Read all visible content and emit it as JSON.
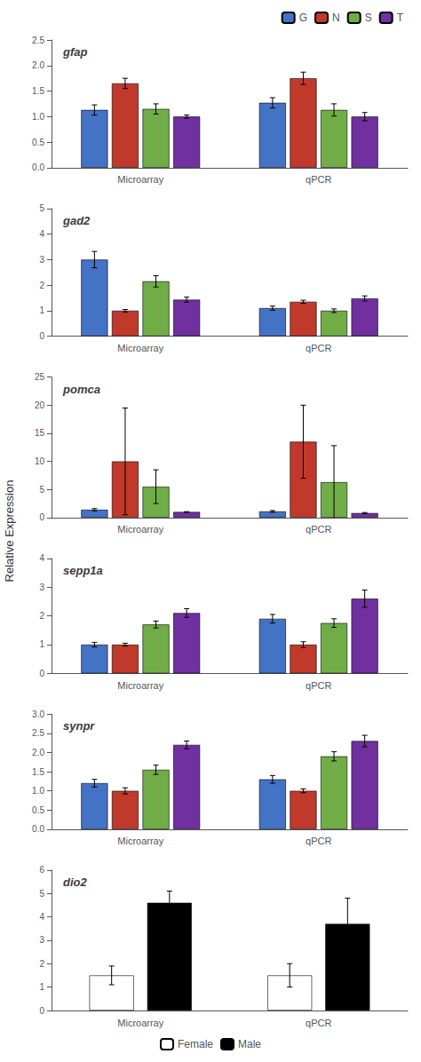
{
  "chart_data": [
    {
      "type": "bar",
      "title": "gfap",
      "ylabel": "Relative Expression",
      "categories": [
        "Microarray",
        "qPCR"
      ],
      "series": [
        {
          "name": "G",
          "color": "#4472C4",
          "values": [
            1.13,
            1.27
          ],
          "errors": [
            0.1,
            0.1
          ]
        },
        {
          "name": "N",
          "color": "#C0392B",
          "values": [
            1.65,
            1.75
          ],
          "errors": [
            0.1,
            0.12
          ]
        },
        {
          "name": "S",
          "color": "#70AD47",
          "values": [
            1.15,
            1.13
          ],
          "errors": [
            0.1,
            0.12
          ]
        },
        {
          "name": "T",
          "color": "#7030A0",
          "values": [
            1.0,
            1.0
          ],
          "errors": [
            0.03,
            0.08
          ]
        }
      ],
      "ylim": [
        0,
        2.5
      ],
      "yticks": [
        {
          "value": 0,
          "label": "0.0"
        },
        0.5,
        {
          "value": 1,
          "label": "1.0"
        },
        1.5,
        {
          "value": 2,
          "label": "2.0"
        },
        2.5
      ],
      "grid": false,
      "legend": "upper right"
    },
    {
      "type": "bar",
      "title": "gad2",
      "categories": [
        "Microarray",
        "qPCR"
      ],
      "series": [
        {
          "name": "G",
          "color": "#4472C4",
          "values": [
            3.0,
            1.1
          ],
          "errors": [
            0.32,
            0.08
          ]
        },
        {
          "name": "N",
          "color": "#C0392B",
          "values": [
            1.0,
            1.35
          ],
          "errors": [
            0.05,
            0.06
          ]
        },
        {
          "name": "S",
          "color": "#70AD47",
          "values": [
            2.15,
            1.0
          ],
          "errors": [
            0.22,
            0.07
          ]
        },
        {
          "name": "T",
          "color": "#7030A0",
          "values": [
            1.43,
            1.48
          ],
          "errors": [
            0.1,
            0.1
          ]
        }
      ],
      "ylim": [
        0,
        5
      ],
      "yticks": [
        0,
        1,
        2,
        3,
        4,
        5
      ],
      "grid": false
    },
    {
      "type": "bar",
      "title": "pomca",
      "categories": [
        "Microarray",
        "qPCR"
      ],
      "series": [
        {
          "name": "G",
          "color": "#4472C4",
          "values": [
            1.4,
            1.1
          ],
          "errors": [
            0.2,
            0.15
          ]
        },
        {
          "name": "N",
          "color": "#C0392B",
          "values": [
            10.0,
            13.5
          ],
          "errors": [
            9.5,
            6.5
          ]
        },
        {
          "name": "S",
          "color": "#70AD47",
          "values": [
            5.5,
            6.3
          ],
          "errors": [
            3.0,
            6.5
          ]
        },
        {
          "name": "T",
          "color": "#7030A0",
          "values": [
            1.0,
            0.8
          ],
          "errors": [
            0.05,
            0.1
          ]
        }
      ],
      "ylim": [
        0,
        25
      ],
      "yticks": [
        0,
        5,
        10,
        15,
        20,
        25
      ],
      "grid": false
    },
    {
      "type": "bar",
      "title": "sepp1a",
      "categories": [
        "Microarray",
        "qPCR"
      ],
      "series": [
        {
          "name": "G",
          "color": "#4472C4",
          "values": [
            1.0,
            1.9
          ],
          "errors": [
            0.08,
            0.15
          ]
        },
        {
          "name": "N",
          "color": "#C0392B",
          "values": [
            1.0,
            1.0
          ],
          "errors": [
            0.05,
            0.1
          ]
        },
        {
          "name": "S",
          "color": "#70AD47",
          "values": [
            1.7,
            1.75
          ],
          "errors": [
            0.12,
            0.15
          ]
        },
        {
          "name": "T",
          "color": "#7030A0",
          "values": [
            2.1,
            2.6
          ],
          "errors": [
            0.15,
            0.3
          ]
        }
      ],
      "ylim": [
        0,
        4
      ],
      "yticks": [
        0,
        1,
        2,
        3,
        4
      ],
      "grid": false
    },
    {
      "type": "bar",
      "title": "synpr",
      "categories": [
        "Microarray",
        "qPCR"
      ],
      "series": [
        {
          "name": "G",
          "color": "#4472C4",
          "values": [
            1.2,
            1.3
          ],
          "errors": [
            0.1,
            0.1
          ]
        },
        {
          "name": "N",
          "color": "#C0392B",
          "values": [
            1.0,
            1.0
          ],
          "errors": [
            0.08,
            0.05
          ]
        },
        {
          "name": "S",
          "color": "#70AD47",
          "values": [
            1.55,
            1.9
          ],
          "errors": [
            0.12,
            0.12
          ]
        },
        {
          "name": "T",
          "color": "#7030A0",
          "values": [
            2.2,
            2.3
          ],
          "errors": [
            0.1,
            0.15
          ]
        }
      ],
      "ylim": [
        0,
        3
      ],
      "yticks": [
        {
          "value": 0,
          "label": "0.0"
        },
        0.5,
        {
          "value": 1,
          "label": "1.0"
        },
        1.5,
        {
          "value": 2,
          "label": "2.0"
        },
        2.5,
        {
          "value": 3,
          "label": "3.0"
        }
      ],
      "grid": false
    },
    {
      "type": "bar",
      "title": "dio2",
      "categories": [
        "Microarray",
        "qPCR"
      ],
      "series": [
        {
          "name": "Female",
          "color": "#FFFFFF",
          "values": [
            1.5,
            1.5
          ],
          "errors": [
            0.4,
            0.5
          ]
        },
        {
          "name": "Male",
          "color": "#000000",
          "values": [
            4.6,
            3.7
          ],
          "errors": [
            0.5,
            1.1
          ]
        }
      ],
      "ylim": [
        0,
        6
      ],
      "yticks": [
        0,
        1,
        2,
        3,
        4,
        5,
        6
      ],
      "grid": false,
      "legend": "lower center"
    }
  ]
}
